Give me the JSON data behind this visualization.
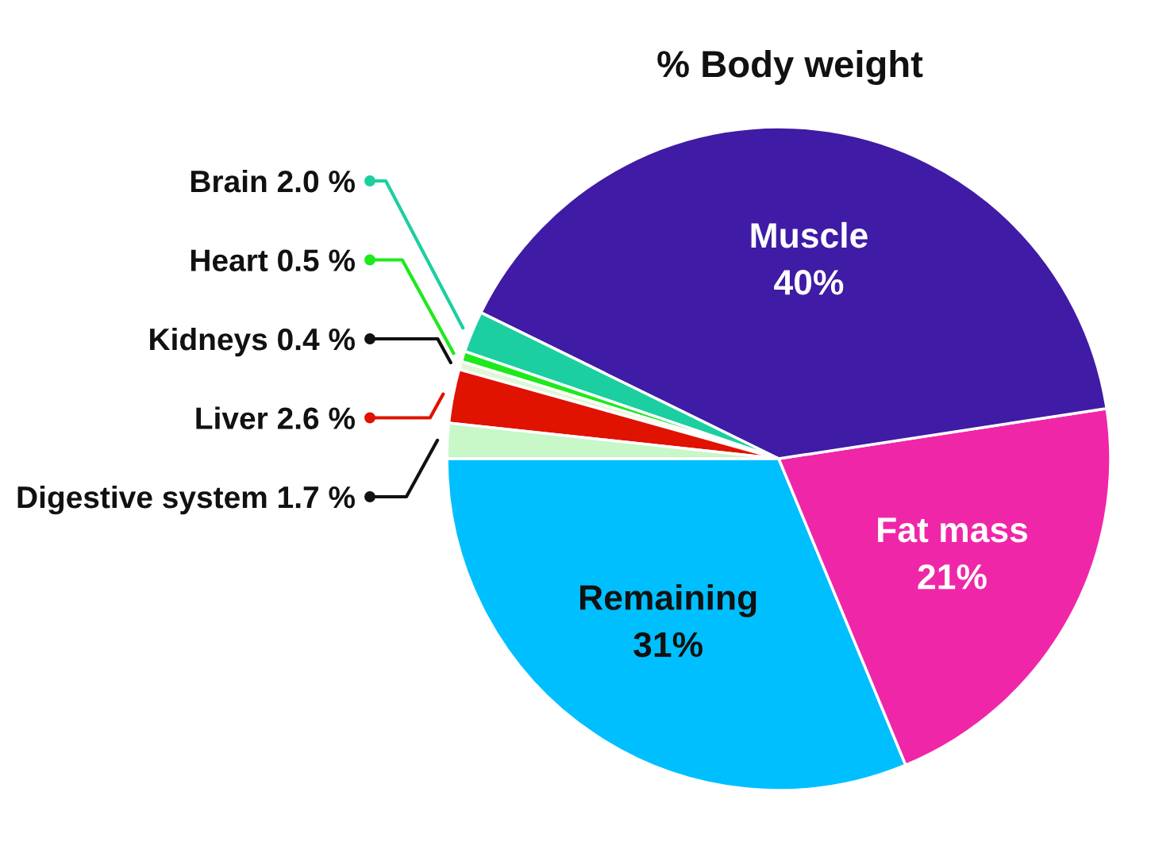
{
  "chart_data": {
    "type": "pie",
    "title": "% Body weight",
    "categories": [
      "Remaining",
      "Fat mass",
      "Muscle",
      "Brain",
      "Heart",
      "Kidneys",
      "Liver",
      "Digestive system"
    ],
    "values": [
      31,
      21,
      40,
      2.0,
      0.5,
      0.4,
      2.6,
      1.7
    ],
    "value_labels": [
      "31%",
      "21%",
      "40%",
      "2.0 %",
      "0.5 %",
      "0.4 %",
      "2.6 %",
      "1.7 %"
    ],
    "colors": [
      "#00bfff",
      "#f026a8",
      "#3f1ba6",
      "#1ccfa0",
      "#1de91d",
      "#dff7d6",
      "#e01200",
      "#c8f7c8"
    ],
    "legend": "left"
  }
}
